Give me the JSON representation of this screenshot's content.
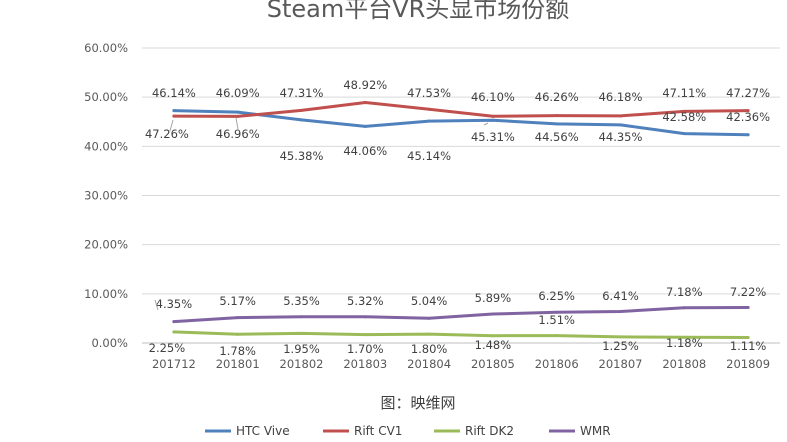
{
  "chart_data": {
    "type": "line",
    "title": "Steam平台VR头显市场份额",
    "categories": [
      "201712",
      "201801",
      "201802",
      "201803",
      "201804",
      "201805",
      "201806",
      "201807",
      "201808",
      "201809"
    ],
    "ylim": [
      0,
      60
    ],
    "yticks": [
      "0.00%",
      "10.00%",
      "20.00%",
      "30.00%",
      "40.00%",
      "50.00%",
      "60.00%"
    ],
    "grid": true,
    "legend_position": "bottom",
    "source_note": "图：映维网",
    "series": [
      {
        "name": "HTC Vive",
        "color": "#4F81BD",
        "values": [
          47.26,
          46.96,
          45.38,
          44.06,
          45.14,
          45.31,
          44.56,
          44.35,
          42.58,
          42.36
        ],
        "labels": [
          "47.26%",
          "46.96%",
          "45.38%",
          "44.06%",
          "45.14%",
          "45.31%",
          "44.56%",
          "44.35%",
          "42.58%",
          "42.36%"
        ]
      },
      {
        "name": "Rift CV1",
        "color": "#C0504D",
        "values": [
          46.14,
          46.09,
          47.31,
          48.92,
          47.53,
          46.1,
          46.26,
          46.18,
          47.11,
          47.27
        ],
        "labels": [
          "46.14%",
          "46.09%",
          "47.31%",
          "48.92%",
          "47.53%",
          "46.10%",
          "46.26%",
          "46.18%",
          "47.11%",
          "47.27%"
        ]
      },
      {
        "name": "Rift DK2",
        "color": "#9BBB59",
        "values": [
          2.25,
          1.78,
          1.95,
          1.7,
          1.8,
          1.48,
          1.51,
          1.25,
          1.18,
          1.11
        ],
        "labels": [
          "2.25%",
          "1.78%",
          "1.95%",
          "1.70%",
          "1.80%",
          "1.48%",
          "1.51%",
          "1.25%",
          "1.18%",
          "1.11%"
        ]
      },
      {
        "name": "WMR",
        "color": "#8064A2",
        "values": [
          4.35,
          5.17,
          5.35,
          5.32,
          5.04,
          5.89,
          6.25,
          6.41,
          7.18,
          7.22
        ],
        "labels": [
          "4.35%",
          "5.17%",
          "5.35%",
          "5.32%",
          "5.04%",
          "5.89%",
          "6.25%",
          "6.41%",
          "7.18%",
          "7.22%"
        ]
      }
    ]
  }
}
